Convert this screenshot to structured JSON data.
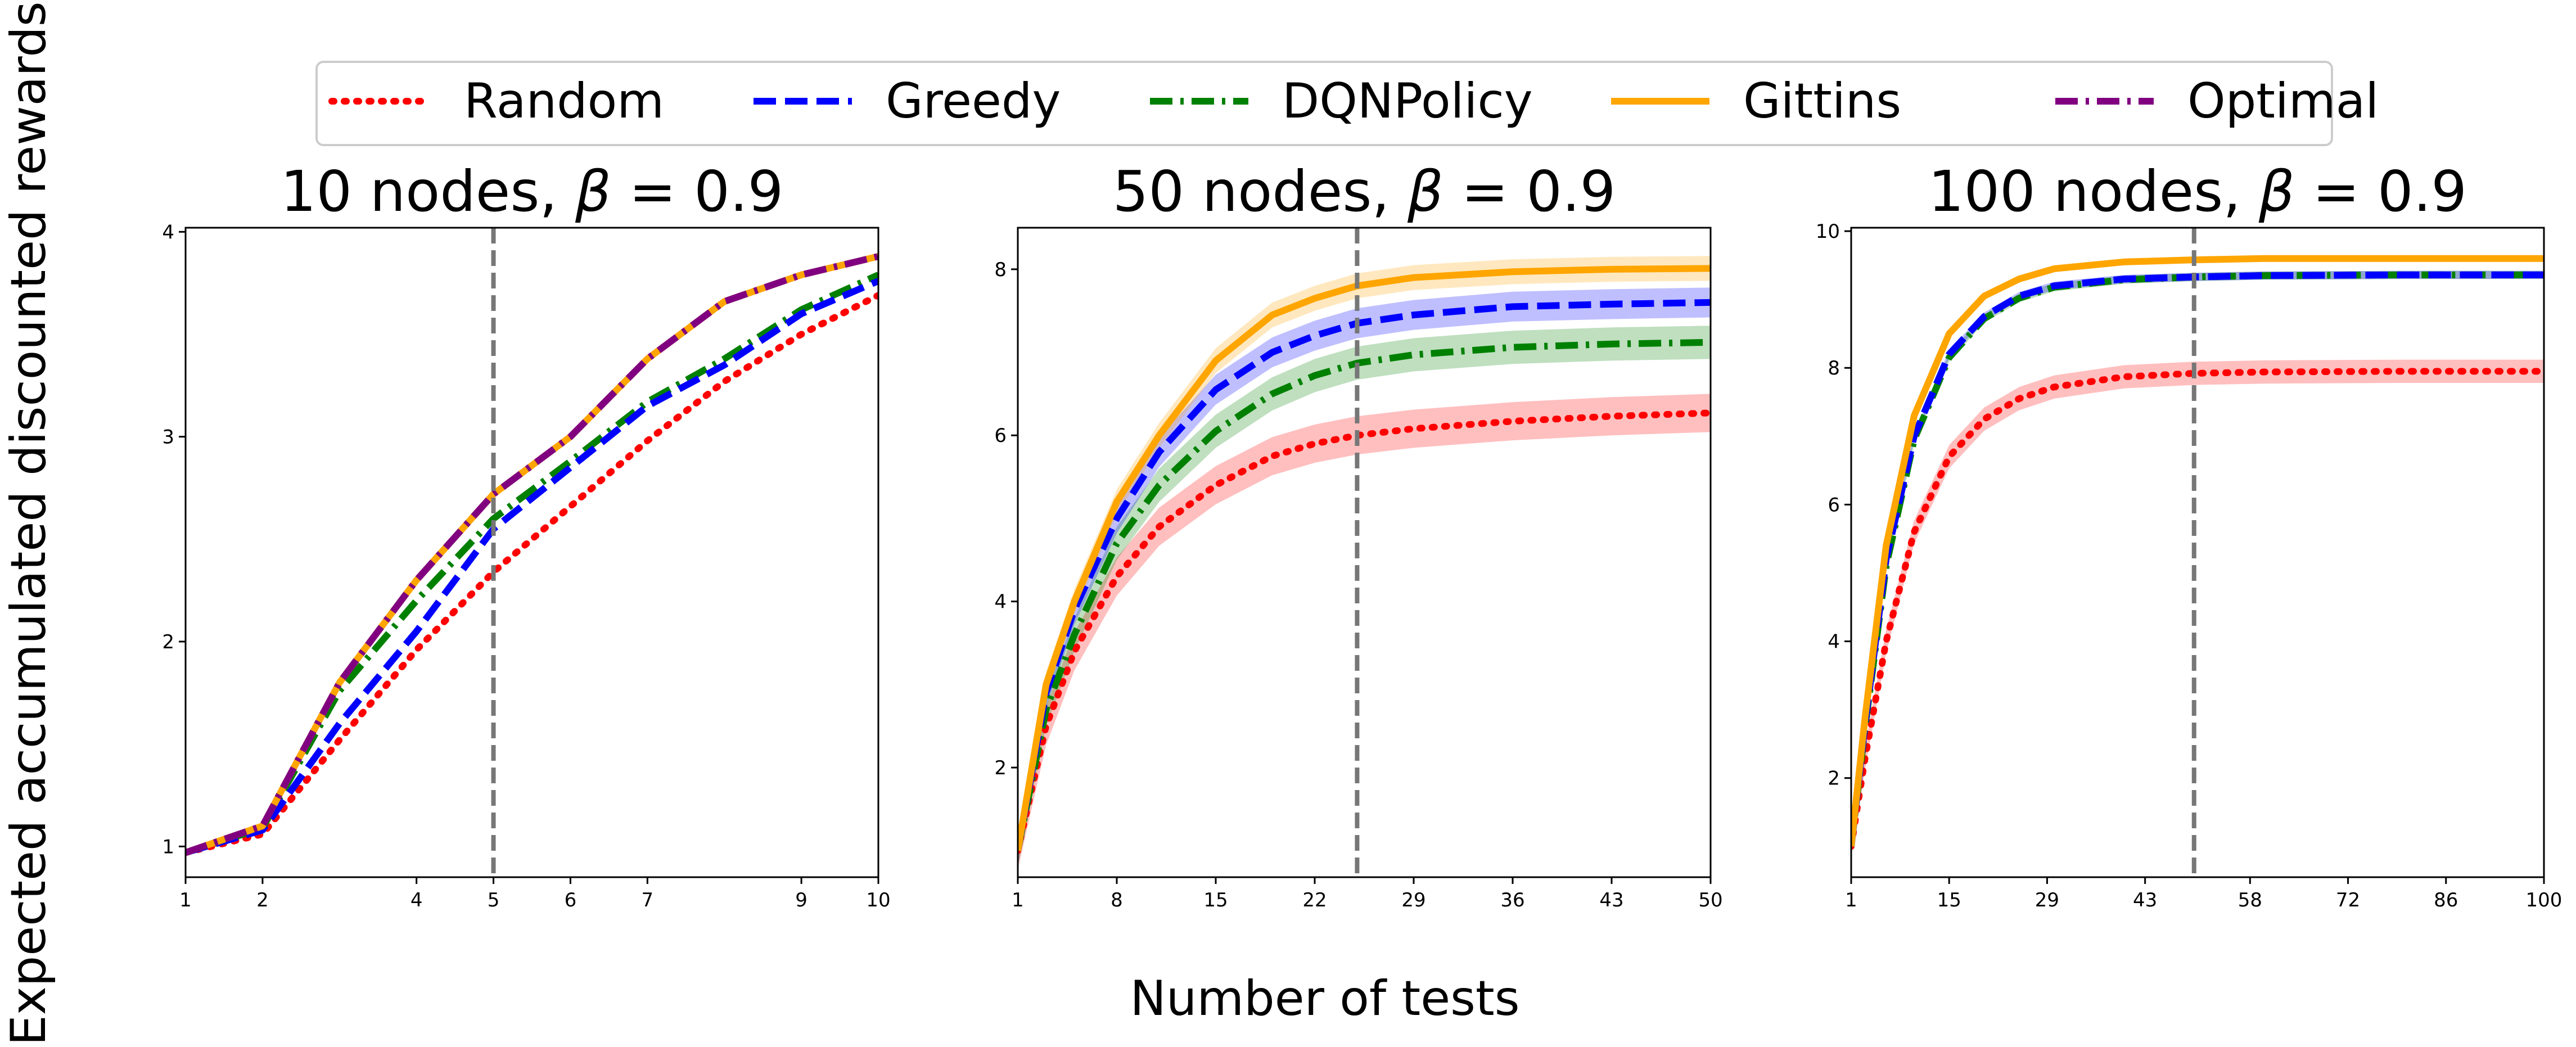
{
  "chart_data": {
    "type": "line",
    "ylabel": "Expected accumulated discounted rewards",
    "xlabel": "Number of tests",
    "legend": {
      "placement": "top-center",
      "entries": [
        {
          "key": "random",
          "label": "Random",
          "color": "#ff0000",
          "style": "dotted"
        },
        {
          "key": "greedy",
          "label": "Greedy",
          "color": "#0000ff",
          "style": "dashed"
        },
        {
          "key": "dqn",
          "label": "DQNPolicy",
          "color": "#008000",
          "style": "dashdot"
        },
        {
          "key": "gittins",
          "label": "Gittins",
          "color": "#ffa500",
          "style": "solid"
        },
        {
          "key": "optimal",
          "label": "Optimal",
          "color": "#800080",
          "style": "dashdot"
        }
      ]
    },
    "panels": [
      {
        "title_prefix": "10 nodes, ",
        "beta_symbol": "β",
        "title_suffix": " =  0.9",
        "xlim": [
          1,
          10
        ],
        "ylim": [
          0.85,
          4.02
        ],
        "xticks": [
          1,
          2,
          4,
          5,
          6,
          7,
          9,
          10
        ],
        "yticks": [
          1,
          2,
          3,
          4
        ],
        "vline": 5,
        "series": {
          "random": {
            "x": [
              1,
              2,
              3,
              4,
              5,
              6,
              7,
              8,
              9,
              10
            ],
            "y": [
              0.97,
              1.06,
              1.52,
              1.96,
              2.34,
              2.66,
              2.98,
              3.27,
              3.5,
              3.69
            ]
          },
          "greedy": {
            "x": [
              1,
              2,
              3,
              4,
              5,
              6,
              7,
              8,
              9,
              10
            ],
            "y": [
              0.97,
              1.08,
              1.6,
              2.05,
              2.55,
              2.85,
              3.15,
              3.35,
              3.6,
              3.76
            ]
          },
          "dqn": {
            "x": [
              1,
              2,
              3,
              4,
              5,
              6,
              7,
              8,
              9,
              10
            ],
            "y": [
              0.97,
              1.09,
              1.76,
              2.2,
              2.6,
              2.88,
              3.17,
              3.38,
              3.62,
              3.79
            ]
          },
          "gittins": {
            "x": [
              1,
              2,
              3,
              4,
              5,
              6,
              7,
              8,
              9,
              10
            ],
            "y": [
              0.97,
              1.1,
              1.8,
              2.3,
              2.72,
              3.0,
              3.38,
              3.66,
              3.79,
              3.88
            ]
          },
          "optimal": {
            "x": [
              1,
              2,
              3,
              4,
              5,
              6,
              7,
              8,
              9,
              10
            ],
            "y": [
              0.97,
              1.1,
              1.8,
              2.3,
              2.72,
              3.0,
              3.38,
              3.66,
              3.79,
              3.88
            ]
          }
        }
      },
      {
        "title_prefix": "50 nodes, ",
        "beta_symbol": "β",
        "title_suffix": " =  0.9",
        "xlim": [
          1,
          50
        ],
        "ylim": [
          0.68,
          8.5
        ],
        "xticks": [
          1,
          8,
          15,
          22,
          29,
          36,
          43,
          50
        ],
        "yticks": [
          2,
          4,
          6,
          8
        ],
        "vline": 25,
        "series": {
          "random": {
            "x": [
              1,
              3,
              5,
              8,
              11,
              15,
              19,
              22,
              25,
              29,
              36,
              43,
              50
            ],
            "y": [
              1.0,
              2.5,
              3.4,
              4.3,
              4.9,
              5.4,
              5.75,
              5.9,
              6.0,
              6.08,
              6.17,
              6.23,
              6.27
            ],
            "band": 0.23
          },
          "greedy": {
            "x": [
              1,
              3,
              5,
              8,
              11,
              15,
              19,
              22,
              25,
              29,
              36,
              43,
              50
            ],
            "y": [
              1.0,
              2.9,
              3.9,
              5.0,
              5.8,
              6.55,
              7.0,
              7.2,
              7.35,
              7.45,
              7.55,
              7.58,
              7.6
            ],
            "band": 0.18
          },
          "dqn": {
            "x": [
              1,
              3,
              5,
              8,
              11,
              15,
              19,
              22,
              25,
              29,
              36,
              43,
              50
            ],
            "y": [
              1.0,
              2.7,
              3.6,
              4.7,
              5.4,
              6.05,
              6.5,
              6.72,
              6.87,
              6.97,
              7.06,
              7.1,
              7.12
            ],
            "band": 0.2
          },
          "gittins": {
            "x": [
              1,
              3,
              5,
              8,
              11,
              15,
              19,
              22,
              25,
              29,
              36,
              43,
              50
            ],
            "y": [
              1.0,
              3.0,
              4.0,
              5.2,
              6.0,
              6.9,
              7.45,
              7.65,
              7.8,
              7.9,
              7.97,
              8.0,
              8.01
            ],
            "band": 0.15
          }
        }
      },
      {
        "title_prefix": "100 nodes, ",
        "beta_symbol": "β",
        "title_suffix": " =  0.9",
        "xlim": [
          1,
          100
        ],
        "ylim": [
          0.55,
          10.05
        ],
        "xticks": [
          1,
          15,
          29,
          43,
          58,
          72,
          86,
          100
        ],
        "yticks": [
          2,
          4,
          6,
          8,
          10
        ],
        "vline": 50,
        "series": {
          "random": {
            "x": [
              1,
              3,
              6,
              10,
              15,
              20,
              25,
              30,
              40,
              50,
              60,
              80,
              100
            ],
            "y": [
              1.0,
              2.3,
              4.0,
              5.6,
              6.7,
              7.25,
              7.55,
              7.72,
              7.87,
              7.92,
              7.94,
              7.95,
              7.95
            ],
            "band": 0.17
          },
          "greedy": {
            "x": [
              1,
              3,
              6,
              10,
              15,
              20,
              25,
              30,
              40,
              50,
              60,
              80,
              100
            ],
            "y": [
              1.0,
              2.8,
              5.2,
              7.0,
              8.2,
              8.75,
              9.05,
              9.2,
              9.3,
              9.33,
              9.35,
              9.36,
              9.36
            ],
            "band": 0.06
          },
          "dqn": {
            "x": [
              1,
              3,
              6,
              10,
              15,
              20,
              25,
              30,
              40,
              50,
              60,
              80,
              100
            ],
            "y": [
              1.0,
              2.75,
              5.1,
              6.95,
              8.15,
              8.72,
              9.02,
              9.18,
              9.29,
              9.33,
              9.35,
              9.36,
              9.36
            ],
            "band": 0.06
          },
          "gittins": {
            "x": [
              1,
              3,
              6,
              10,
              15,
              20,
              25,
              30,
              40,
              50,
              60,
              80,
              100
            ],
            "y": [
              1.0,
              2.9,
              5.4,
              7.3,
              8.5,
              9.05,
              9.3,
              9.45,
              9.55,
              9.58,
              9.6,
              9.6,
              9.6
            ],
            "band": 0.05
          }
        }
      }
    ]
  }
}
